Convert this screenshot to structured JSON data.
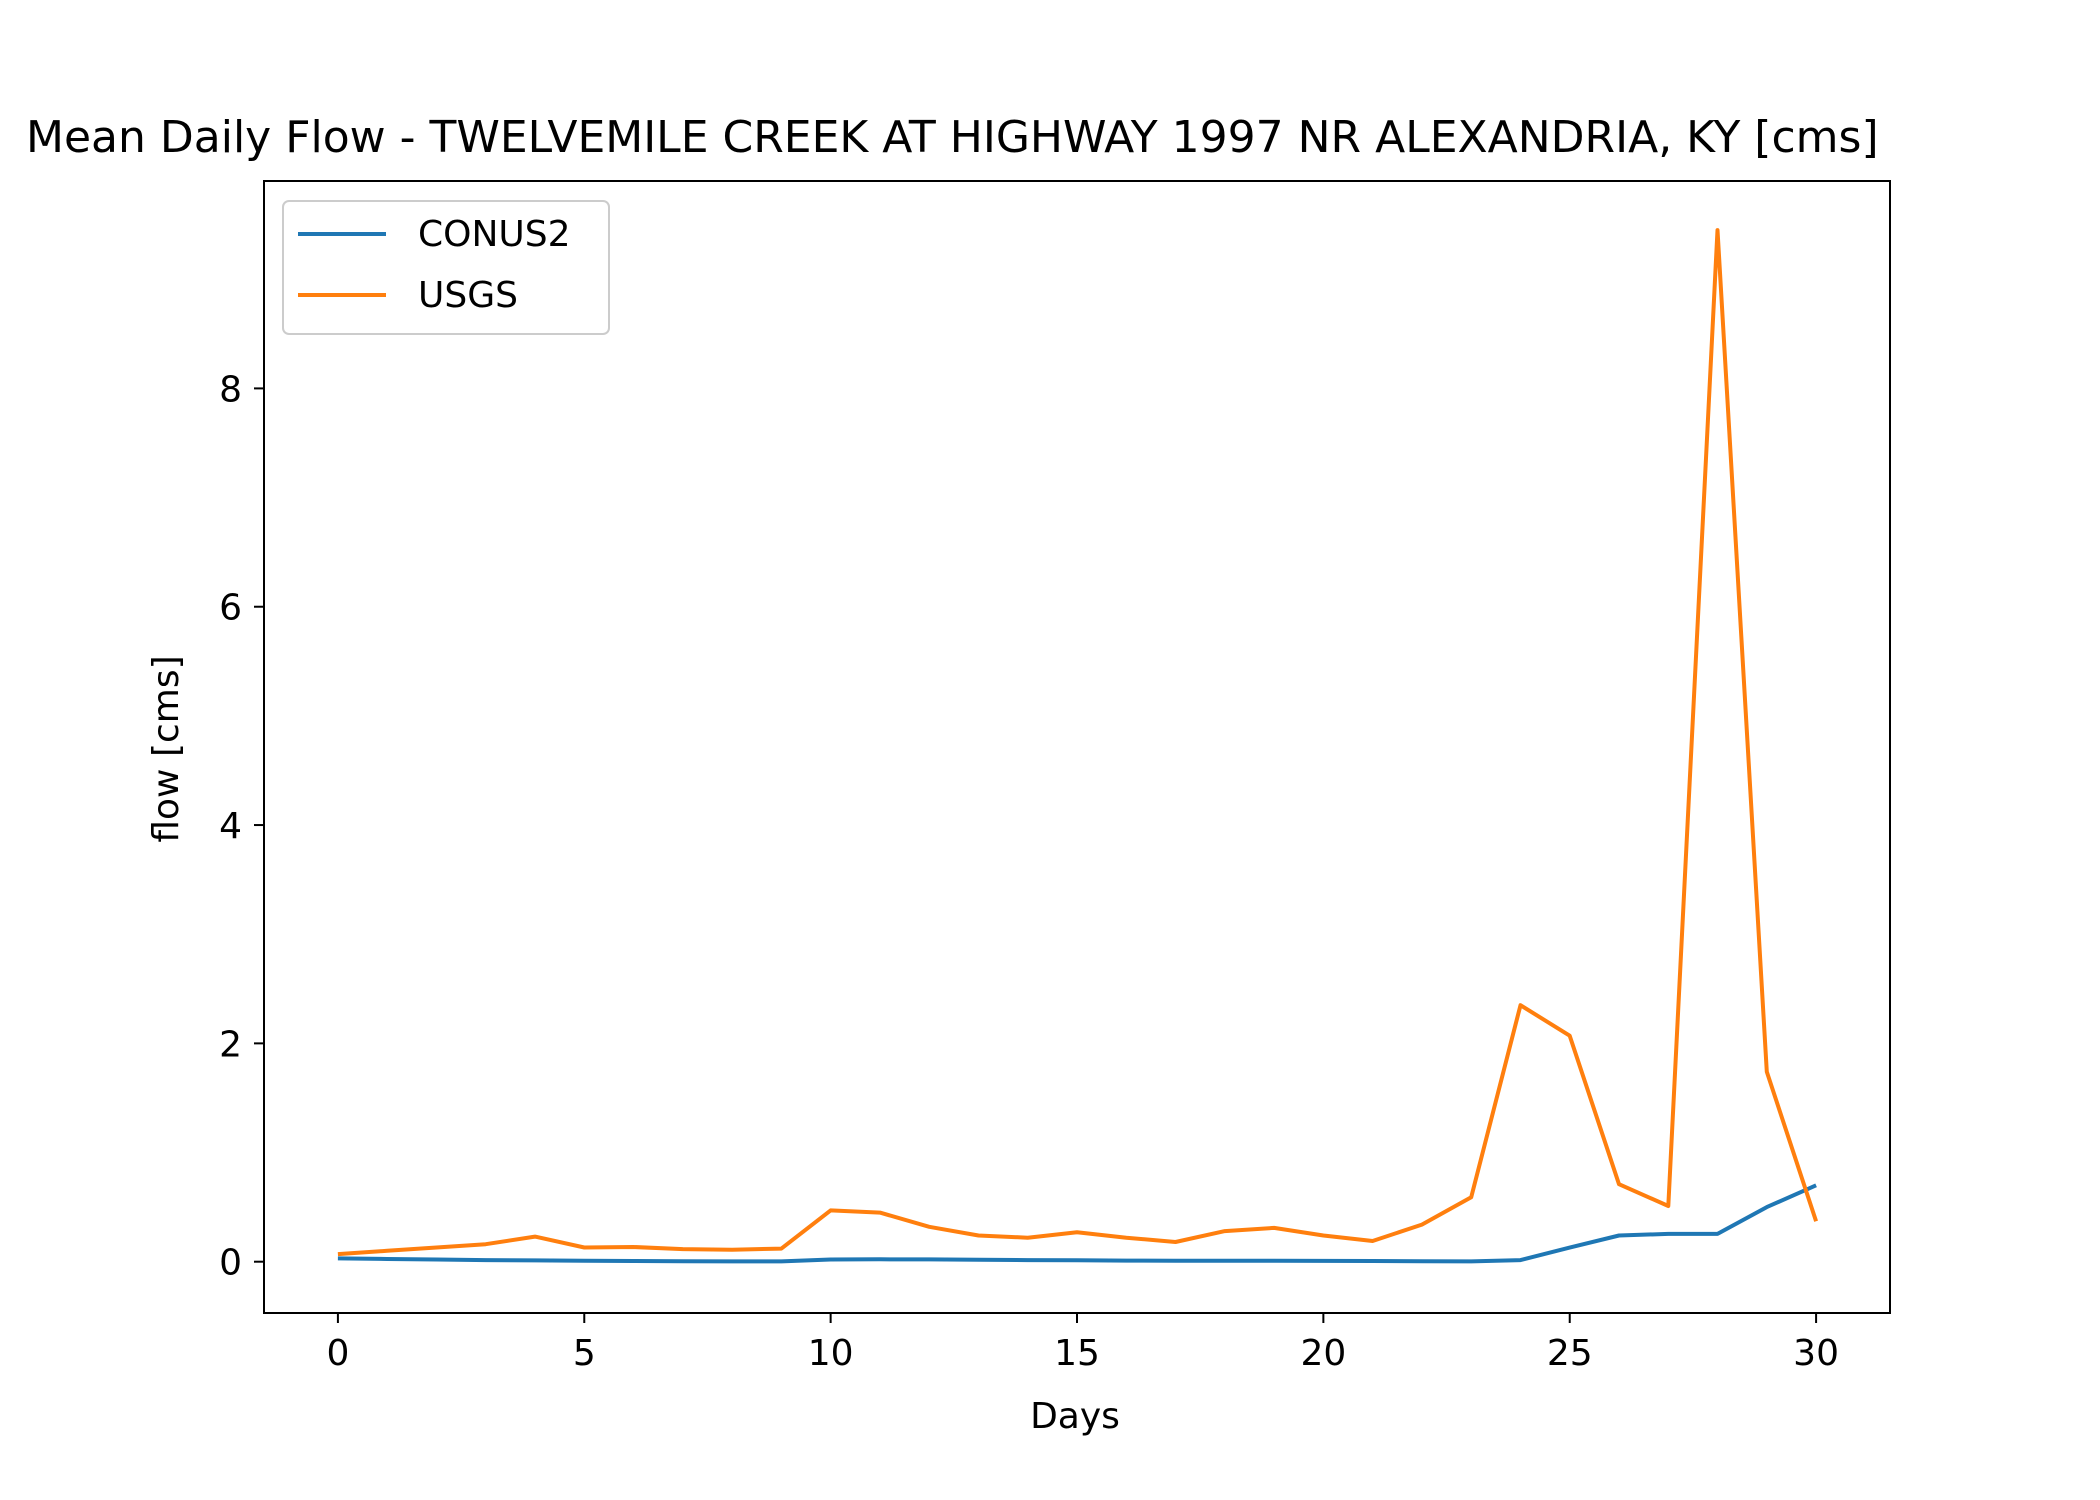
{
  "chart_data": {
    "type": "line",
    "title": "Mean Daily Flow - TWELVEMILE CREEK AT HIGHWAY 1997 NR ALEXANDRIA, KY [cms]",
    "xlabel": "Days",
    "ylabel": "flow [cms]",
    "xlim": [
      -1.5,
      31.5
    ],
    "ylim": [
      -0.47,
      9.9
    ],
    "grid": false,
    "legend_position": "upper-left",
    "x": [
      0,
      1,
      2,
      3,
      4,
      5,
      6,
      7,
      8,
      9,
      10,
      11,
      12,
      13,
      14,
      15,
      16,
      17,
      18,
      19,
      20,
      21,
      22,
      23,
      24,
      25,
      26,
      27,
      28,
      29,
      30
    ],
    "x_ticks": [
      "0",
      "5",
      "10",
      "15",
      "20",
      "25",
      "30"
    ],
    "y_ticks": [
      "0",
      "2",
      "4",
      "6",
      "8"
    ],
    "series": [
      {
        "name": "CONUS2",
        "color": "#1f77b4",
        "values": [
          0.03,
          0.025,
          0.02,
          0.015,
          0.012,
          0.008,
          0.006,
          0.004,
          0.003,
          0.003,
          0.02,
          0.022,
          0.021,
          0.018,
          0.015,
          0.013,
          0.01,
          0.008,
          0.008,
          0.008,
          0.007,
          0.006,
          0.004,
          0.003,
          0.015,
          0.13,
          0.24,
          0.255,
          0.255,
          0.5,
          0.7
        ]
      },
      {
        "name": "USGS",
        "color": "#ff7f0e",
        "values": [
          0.07,
          0.1,
          0.13,
          0.16,
          0.23,
          0.13,
          0.135,
          0.115,
          0.11,
          0.12,
          0.47,
          0.45,
          0.32,
          0.24,
          0.22,
          0.27,
          0.22,
          0.18,
          0.28,
          0.31,
          0.24,
          0.19,
          0.34,
          0.59,
          2.35,
          2.07,
          0.71,
          0.51,
          9.45,
          1.74,
          0.37
        ]
      }
    ]
  }
}
